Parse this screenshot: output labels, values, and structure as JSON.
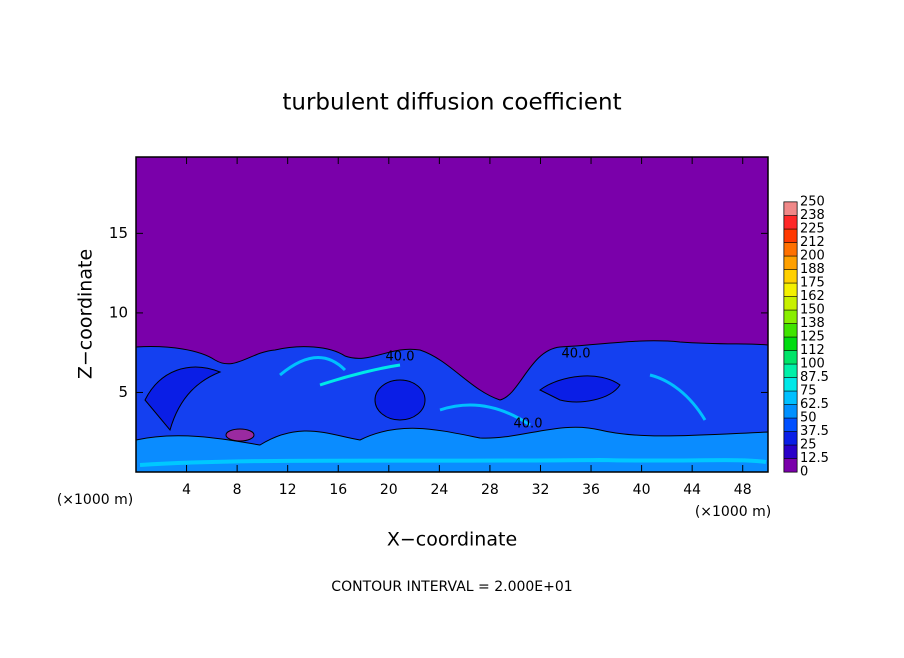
{
  "chart_data": {
    "type": "contour",
    "title": "turbulent diffusion coefficient",
    "xlabel": "X−coordinate",
    "ylabel": "Z−coordinate",
    "x_unit_left": "(×1000 m)",
    "x_unit_right": "(×1000 m)",
    "note": "CONTOUR INTERVAL = 2.000E+01",
    "xlim": [
      0,
      50
    ],
    "ylim": [
      0,
      19.8
    ],
    "xticks": [
      4,
      8,
      12,
      16,
      20,
      24,
      28,
      32,
      36,
      40,
      44,
      48
    ],
    "yticks": [
      5,
      10,
      15
    ],
    "contour_labels": [
      {
        "value": 40,
        "label": "40.0"
      },
      {
        "value": 40,
        "label": "40.0"
      },
      {
        "value": 40,
        "label": "40.0"
      }
    ],
    "levels": [
      0,
      12.5,
      25,
      37.5,
      50,
      62.5,
      75,
      87.5,
      100,
      {
        "value": 112.5,
        "label": "112"
      },
      125,
      {
        "value": 137.5,
        "label": "138"
      },
      150,
      {
        "value": 162.5,
        "label": "162"
      },
      175,
      {
        "value": 187.5,
        "label": "188"
      },
      200,
      {
        "value": 212.5,
        "label": "212"
      },
      225,
      {
        "value": 237.5,
        "label": "238"
      },
      250
    ],
    "colors": [
      "#7a00aa",
      "#2a00c8",
      "#0a1ee6",
      "#0050ff",
      "#0090ff",
      "#00c0ff",
      "#00e8e8",
      "#00f0a8",
      "#00e468",
      "#00dc10",
      "#40e400",
      "#88ee00",
      "#c8f000",
      "#f4f000",
      "#ffd000",
      "#ffa000",
      "#ff7000",
      "#ff3800",
      "#ff2828",
      "#f08888"
    ]
  }
}
